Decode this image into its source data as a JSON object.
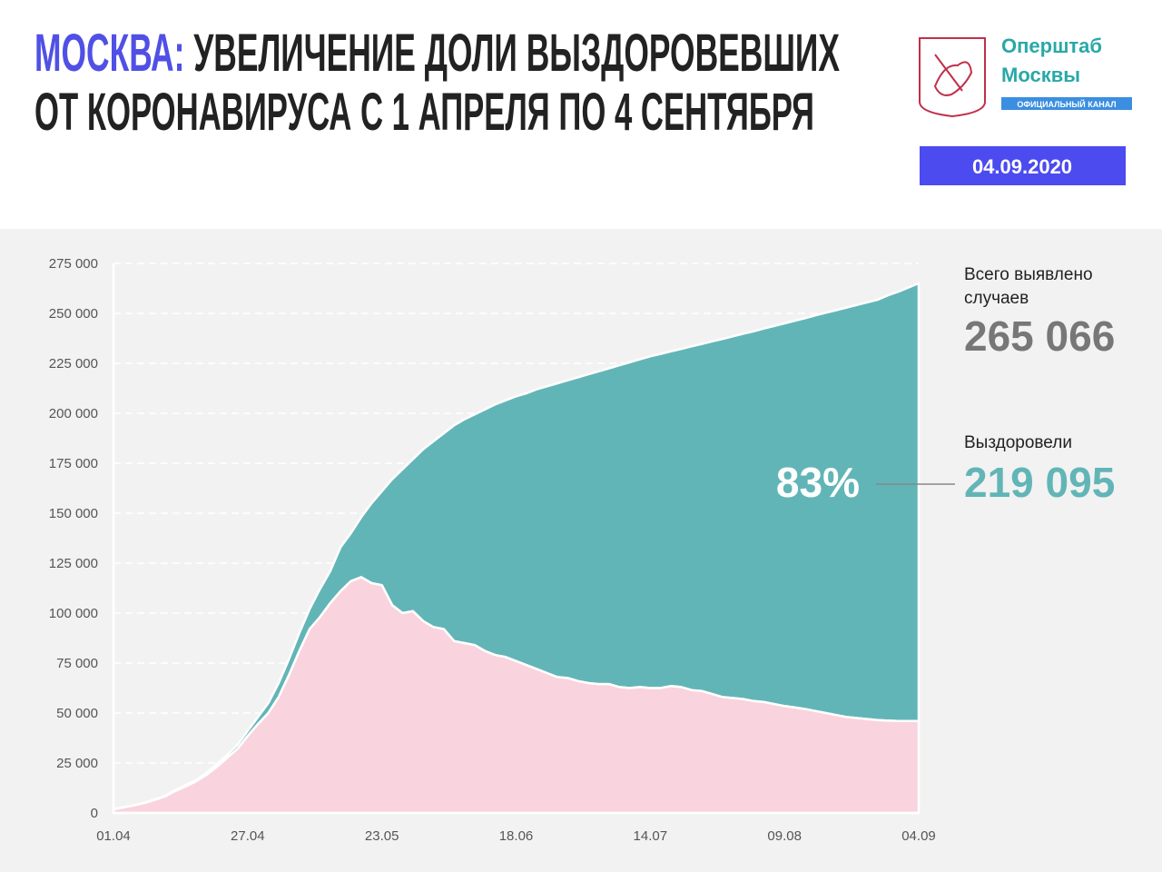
{
  "header": {
    "title_highlight": "МОСКВА:",
    "title_rest": "УВЕЛИЧЕНИЕ ДОЛИ ВЫЗДОРОВЕВШИХ",
    "title_line2": "ОТ КОРОНАВИРУСА С 1 АПРЕЛЯ ПО 4 СЕНТЯБРЯ",
    "logo_line1": "Оперштаб",
    "logo_line2": "Москвы",
    "logo_badge": "ОФИЦИАЛЬНЫЙ КАНАЛ",
    "date": "04.09.2020"
  },
  "chart_data": {
    "type": "stacked_area",
    "categories": [
      "01.04",
      null,
      null,
      null,
      null,
      null,
      null,
      null,
      null,
      null,
      null,
      null,
      null,
      "27.04",
      null,
      null,
      null,
      null,
      null,
      null,
      null,
      null,
      null,
      null,
      null,
      null,
      "23.05",
      null,
      null,
      null,
      null,
      null,
      null,
      null,
      null,
      null,
      null,
      null,
      null,
      "18.06",
      null,
      null,
      null,
      null,
      null,
      null,
      null,
      null,
      null,
      null,
      null,
      null,
      "14.07",
      null,
      null,
      null,
      null,
      null,
      null,
      null,
      null,
      null,
      null,
      null,
      null,
      "09.08",
      null,
      null,
      null,
      null,
      null,
      null,
      null,
      null,
      null,
      null,
      null,
      null,
      "04.09"
    ],
    "series": [
      {
        "color": "#f9d3de",
        "values": [
          1800,
          2800,
          3800,
          5000,
          6500,
          8300,
          11000,
          13300,
          15800,
          19000,
          23000,
          27500,
          32000,
          38500,
          44500,
          50000,
          58000,
          69000,
          81000,
          92000,
          98000,
          105000,
          111000,
          116000,
          118000,
          115000,
          114000,
          104000,
          100000,
          101000,
          96000,
          93000,
          92000,
          86000,
          85000,
          84000,
          81000,
          79000,
          78000,
          76000,
          74000,
          72000,
          70000,
          68000,
          67500,
          66000,
          65000,
          64500,
          64500,
          63000,
          62500,
          63000,
          62500,
          62500,
          63500,
          63000,
          61500,
          61000,
          59500,
          58000,
          57500,
          57000,
          56000,
          55500,
          54500,
          53500,
          52800,
          52000,
          51000,
          50000,
          49000,
          48000,
          47500,
          47000,
          46500,
          46200,
          46000,
          46000,
          45971
        ]
      },
      {
        "name": "Выздоровели",
        "color": "#62b5b7",
        "values": [
          80,
          100,
          100,
          200,
          200,
          300,
          500,
          700,
          700,
          1000,
          1300,
          1500,
          2000,
          2500,
          3500,
          5000,
          7000,
          8000,
          9000,
          10000,
          14000,
          16000,
          22000,
          24000,
          30000,
          40000,
          47000,
          63000,
          72000,
          76000,
          86000,
          93000,
          98000,
          108000,
          112000,
          115500,
          121000,
          125500,
          128500,
          132500,
          136000,
          140000,
          143500,
          147000,
          149000,
          152000,
          154500,
          156500,
          158000,
          161000,
          163000,
          164000,
          166000,
          167200,
          167500,
          169200,
          172000,
          173700,
          176500,
          179200,
          181000,
          182800,
          185000,
          186900,
          189200,
          191500,
          193500,
          195600,
          198000,
          200300,
          202600,
          204900,
          206700,
          208500,
          210300,
          212800,
          214800,
          216900,
          219095
        ]
      }
    ],
    "ylim": [
      0,
      275000
    ],
    "yticks": [
      0,
      {
        "value": 25000,
        "label": "25 000"
      },
      {
        "value": 50000,
        "label": "50 000"
      },
      {
        "value": 75000,
        "label": "75 000"
      },
      {
        "value": 100000,
        "label": "100 000"
      },
      {
        "value": 125000,
        "label": "125 000"
      },
      {
        "value": 150000,
        "label": "150 000"
      },
      {
        "value": 175000,
        "label": "175 000"
      },
      {
        "value": 200000,
        "label": "200 000"
      },
      {
        "value": 225000,
        "label": "225 000"
      },
      {
        "value": 250000,
        "label": "250 000"
      },
      {
        "value": 275000,
        "label": "275 000"
      }
    ],
    "grid": true,
    "summary": {
      "total_label": "Всего выявлено случаев",
      "total": 265066,
      "total_label_value": "265 066",
      "recovered_label": "Выздоровели",
      "recovered": 219095,
      "recovered_label_value": "219 095",
      "share": 83,
      "share_label": "83%"
    }
  }
}
